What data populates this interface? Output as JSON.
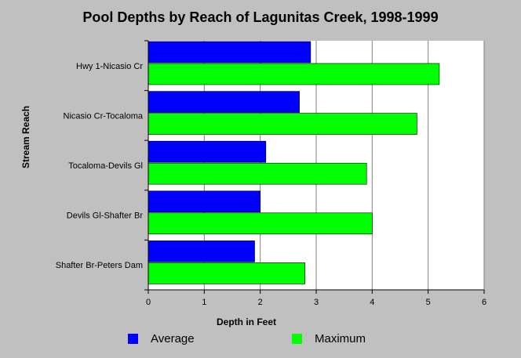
{
  "chart_data": {
    "type": "bar",
    "orientation": "horizontal",
    "title": "Pool Depths by Reach of Lagunitas Creek, 1998-1999",
    "xlabel": "Depth in Feet",
    "ylabel": "Stream Reach",
    "categories": [
      "Hwy 1-Nicasio Cr",
      "Nicasio Cr-Tocaloma",
      "Tocaloma-Devils Gl",
      "Devils Gl-Shafter Br",
      "Shafter Br-Peters Dam"
    ],
    "series": [
      {
        "name": "Average",
        "color": "#0000ff",
        "values": [
          2.9,
          2.7,
          2.1,
          2.0,
          1.9
        ]
      },
      {
        "name": "Maximum",
        "color": "#00ff00",
        "values": [
          5.2,
          4.8,
          3.9,
          4.0,
          2.8
        ]
      }
    ],
    "xlim": [
      0,
      6
    ],
    "xticks": [
      "0",
      "1",
      "2",
      "3",
      "4",
      "5",
      "6"
    ],
    "grid": true,
    "legend_position": "bottom"
  }
}
